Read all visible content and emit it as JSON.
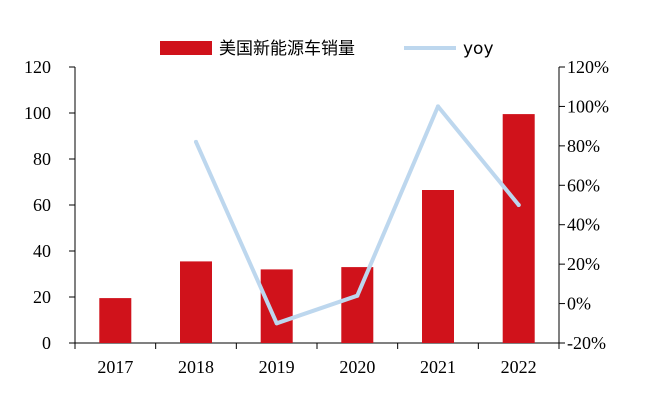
{
  "chart_data": {
    "type": "bar",
    "title": "",
    "xlabel": "",
    "ylabel": "",
    "categories": [
      "2017",
      "2018",
      "2019",
      "2020",
      "2021",
      "2022"
    ],
    "series": [
      {
        "name": "美国新能源车销量",
        "type": "bar",
        "axis": "left",
        "color": "#d0121b",
        "values": [
          19.5,
          35.5,
          32,
          33,
          66.5,
          99.5
        ]
      },
      {
        "name": "yoy",
        "type": "line",
        "axis": "right",
        "color": "#bdd7ee",
        "values": [
          null,
          82,
          -10,
          4,
          100,
          50
        ]
      }
    ],
    "ylim": [
      0,
      120
    ],
    "yticks": [
      "0",
      "20",
      "40",
      "60",
      "80",
      "100",
      "120"
    ],
    "y2lim": [
      -20,
      120
    ],
    "y2ticks": [
      "-20%",
      "0%",
      "20%",
      "40%",
      "60%",
      "80%",
      "100%",
      "120%"
    ],
    "legend": {
      "position": "top"
    },
    "grid": false
  }
}
